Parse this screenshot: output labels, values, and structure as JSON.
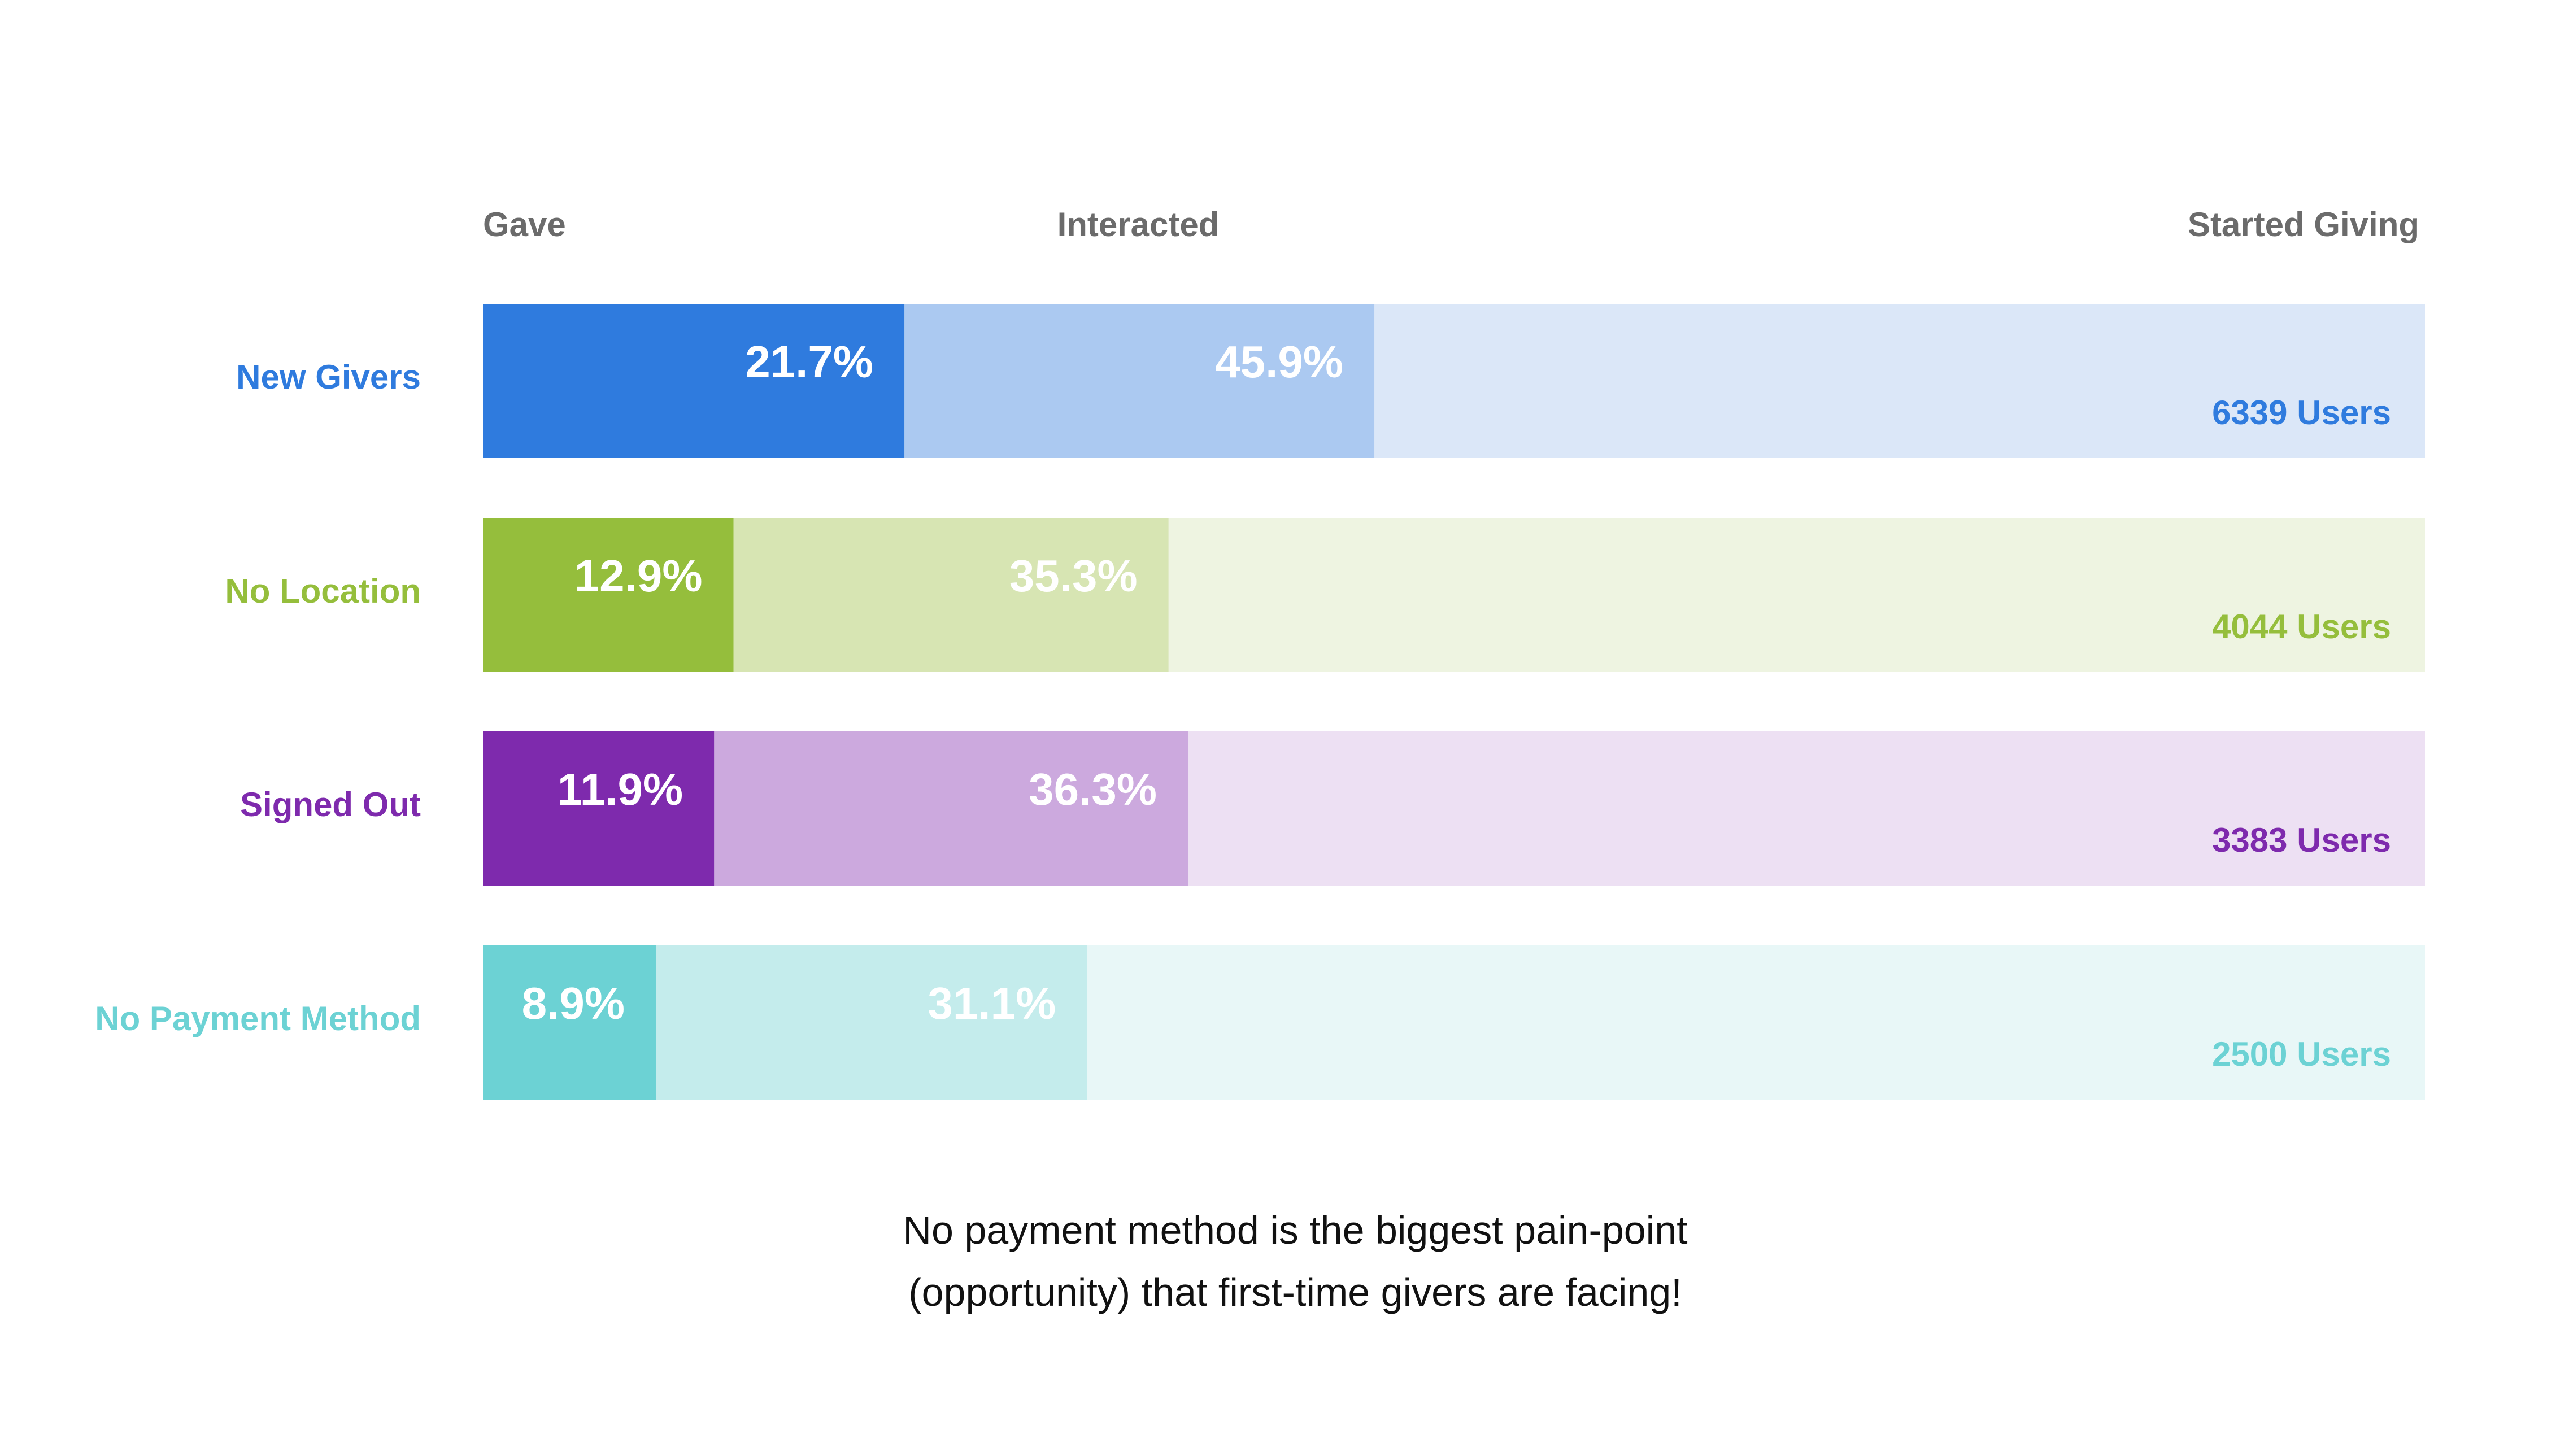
{
  "chart_data": {
    "type": "bar",
    "stage_labels": {
      "gave": "Gave",
      "interacted": "Interacted",
      "started": "Started Giving"
    },
    "rows": [
      {
        "label": "New Givers",
        "gave_pct": 21.7,
        "gave_label": "21.7%",
        "interacted_pct": 45.9,
        "interacted_label": "45.9%",
        "users_label": "6339 Users",
        "colors": {
          "dark": "#2f7bde",
          "mid": "#abc9f1",
          "light": "#dbe7f8",
          "text": "#2f7bde"
        }
      },
      {
        "label": "No Location",
        "gave_pct": 12.9,
        "gave_label": "12.9%",
        "interacted_pct": 35.3,
        "interacted_label": "35.3%",
        "users_label": "4044 Users",
        "colors": {
          "dark": "#95be3c",
          "mid": "#d7e5b3",
          "light": "#eef4e1",
          "text": "#95be3c"
        }
      },
      {
        "label": "Signed Out",
        "gave_pct": 11.9,
        "gave_label": "11.9%",
        "interacted_pct": 36.3,
        "interacted_label": "36.3%",
        "users_label": "3383 Users",
        "colors": {
          "dark": "#7e2aad",
          "mid": "#cca9de",
          "light": "#ede0f3",
          "text": "#7e2aad"
        }
      },
      {
        "label": "No Payment Method",
        "gave_pct": 8.9,
        "gave_label": "8.9%",
        "interacted_pct": 31.1,
        "interacted_label": "31.1%",
        "users_label": "2500 Users",
        "colors": {
          "dark": "#6cd2d4",
          "mid": "#c4ecec",
          "light": "#e8f7f7",
          "text": "#6cd2d4"
        }
      }
    ]
  },
  "caption": {
    "line1": "No payment method is the biggest pain-point",
    "line2": "(opportunity) that first-time givers are facing!"
  }
}
